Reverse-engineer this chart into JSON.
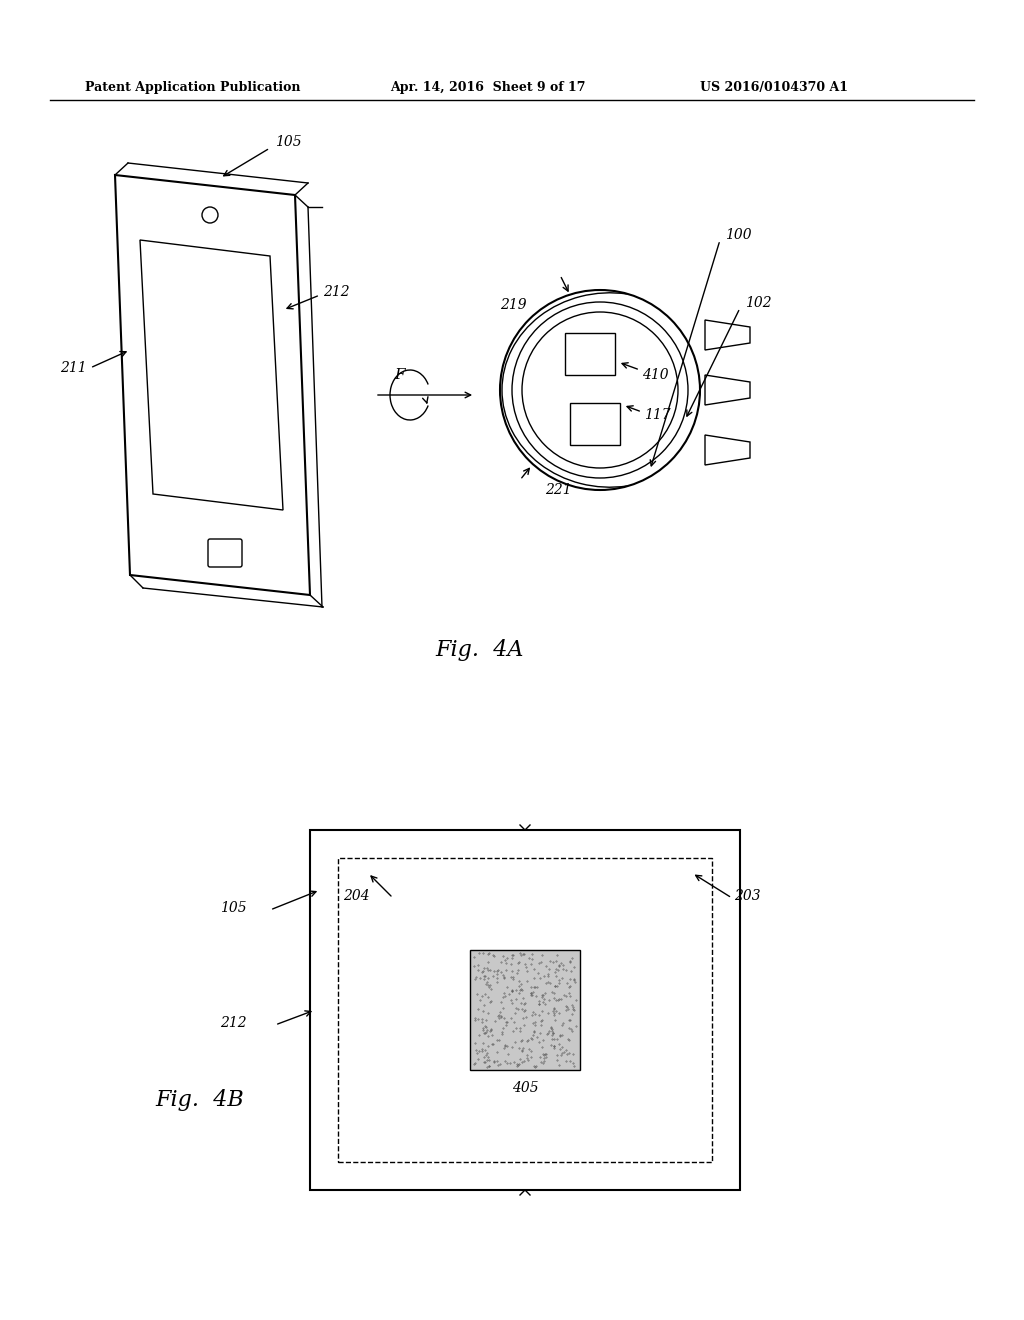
{
  "header_left": "Patent Application Publication",
  "header_mid": "Apr. 14, 2016  Sheet 9 of 17",
  "header_right": "US 2016/0104370 A1",
  "fig4a_label": "Fig.  4A",
  "fig4b_label": "Fig.  4B",
  "bg_color": "#ffffff",
  "line_color": "#000000",
  "label_color": "#000000"
}
